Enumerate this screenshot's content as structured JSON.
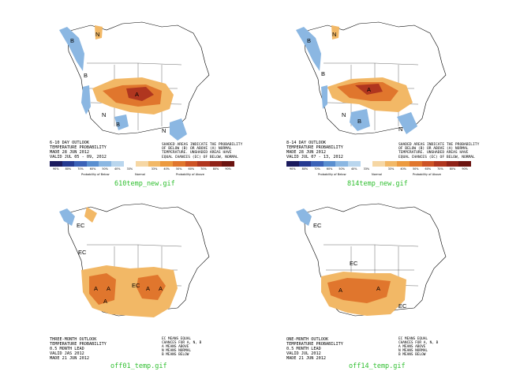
{
  "panels": [
    {
      "id": "p1",
      "caption": "610temp_new.gif",
      "title_lines": [
        "6-10 DAY OUTLOOK",
        "TEMPERATURE PROBABILITY",
        "MADE 28 JUN 2012",
        "VALID JUL 05 - 09, 2012"
      ],
      "legend_lines": [
        "SHADED AREAS INDICATE THE PROBABILITY",
        "OF BELOW (B) OR ABOVE (A) NORMAL",
        "TEMPERATURE. UNSHADED AREAS HAVE",
        "EQUAL CHANCES (EC) OF BELOW, NORMAL",
        "OR ABOVE NORMAL"
      ],
      "map_labels": [
        "B",
        "B",
        "N",
        "B",
        "A",
        "N",
        "N"
      ],
      "has_colorbar": true
    },
    {
      "id": "p2",
      "caption": "814temp_new.gif",
      "title_lines": [
        "8-14 DAY OUTLOOK",
        "TEMPERATURE PROBABILITY",
        "MADE 28 JUN 2012",
        "VALID JUL 07 - 13, 2012"
      ],
      "legend_lines": [
        "SHADED AREAS INDICATE THE PROBABILITY",
        "OF BELOW (B) OR ABOVE (A) NORMAL",
        "TEMPERATURE. UNSHADED AREAS HAVE",
        "EQUAL CHANCES (EC) OF BELOW, NORMAL",
        "OR ABOVE NORMAL"
      ],
      "map_labels": [
        "B",
        "B",
        "N",
        "A",
        "B",
        "N",
        "N"
      ],
      "has_colorbar": true
    },
    {
      "id": "p3",
      "caption": "off01_temp.gif",
      "title_lines": [
        "THREE-MONTH OUTLOOK",
        "TEMPERATURE PROBABILITY",
        "0.5 MONTH LEAD",
        "VALID JAS 2012",
        "MADE 21 JUN 2012"
      ],
      "legend_lines": [
        "EC MEANS EQUAL",
        "CHANCES FOR A, N, B",
        "A MEANS ABOVE",
        "N MEANS NORMAL",
        "B MEANS BELOW"
      ],
      "map_labels": [
        "EC",
        "EC",
        "EC",
        "A",
        "A",
        "A",
        "A",
        "A"
      ],
      "has_colorbar": false
    },
    {
      "id": "p4",
      "caption": "off14_temp.gif",
      "title_lines": [
        "ONE-MONTH OUTLOOK",
        "TEMPERATURE PROBABILITY",
        "0.5 MONTH LEAD",
        "VALID JUL 2012",
        "MADE 21 JUN 2012"
      ],
      "legend_lines": [
        "EC MEANS EQUAL",
        "CHANCES FOR A, N, B",
        "A MEANS ABOVE",
        "N MEANS NORMAL",
        "B MEANS BELOW"
      ],
      "map_labels": [
        "EC",
        "EC",
        "A",
        "A",
        "EC"
      ],
      "has_colorbar": false
    }
  ],
  "colorbar": {
    "colors": [
      "#1b1b5e",
      "#253a91",
      "#3b62b7",
      "#5a8fd0",
      "#8bb7e2",
      "#b9d6ee",
      "#ffffff",
      "#f6d7a4",
      "#f2b866",
      "#ec9a3f",
      "#e0762d",
      "#cd5325",
      "#b0361f",
      "#8f2218",
      "#6b1410"
    ],
    "ticks": [
      "90%",
      "80%",
      "70%",
      "60%",
      "50%",
      "40%",
      "33%",
      "",
      "33%",
      "40%",
      "50%",
      "60%",
      "70%",
      "80%",
      "90%"
    ],
    "below_label": "Probability of Below",
    "above_label": "Probability of Above",
    "normal_label": "Normal"
  }
}
